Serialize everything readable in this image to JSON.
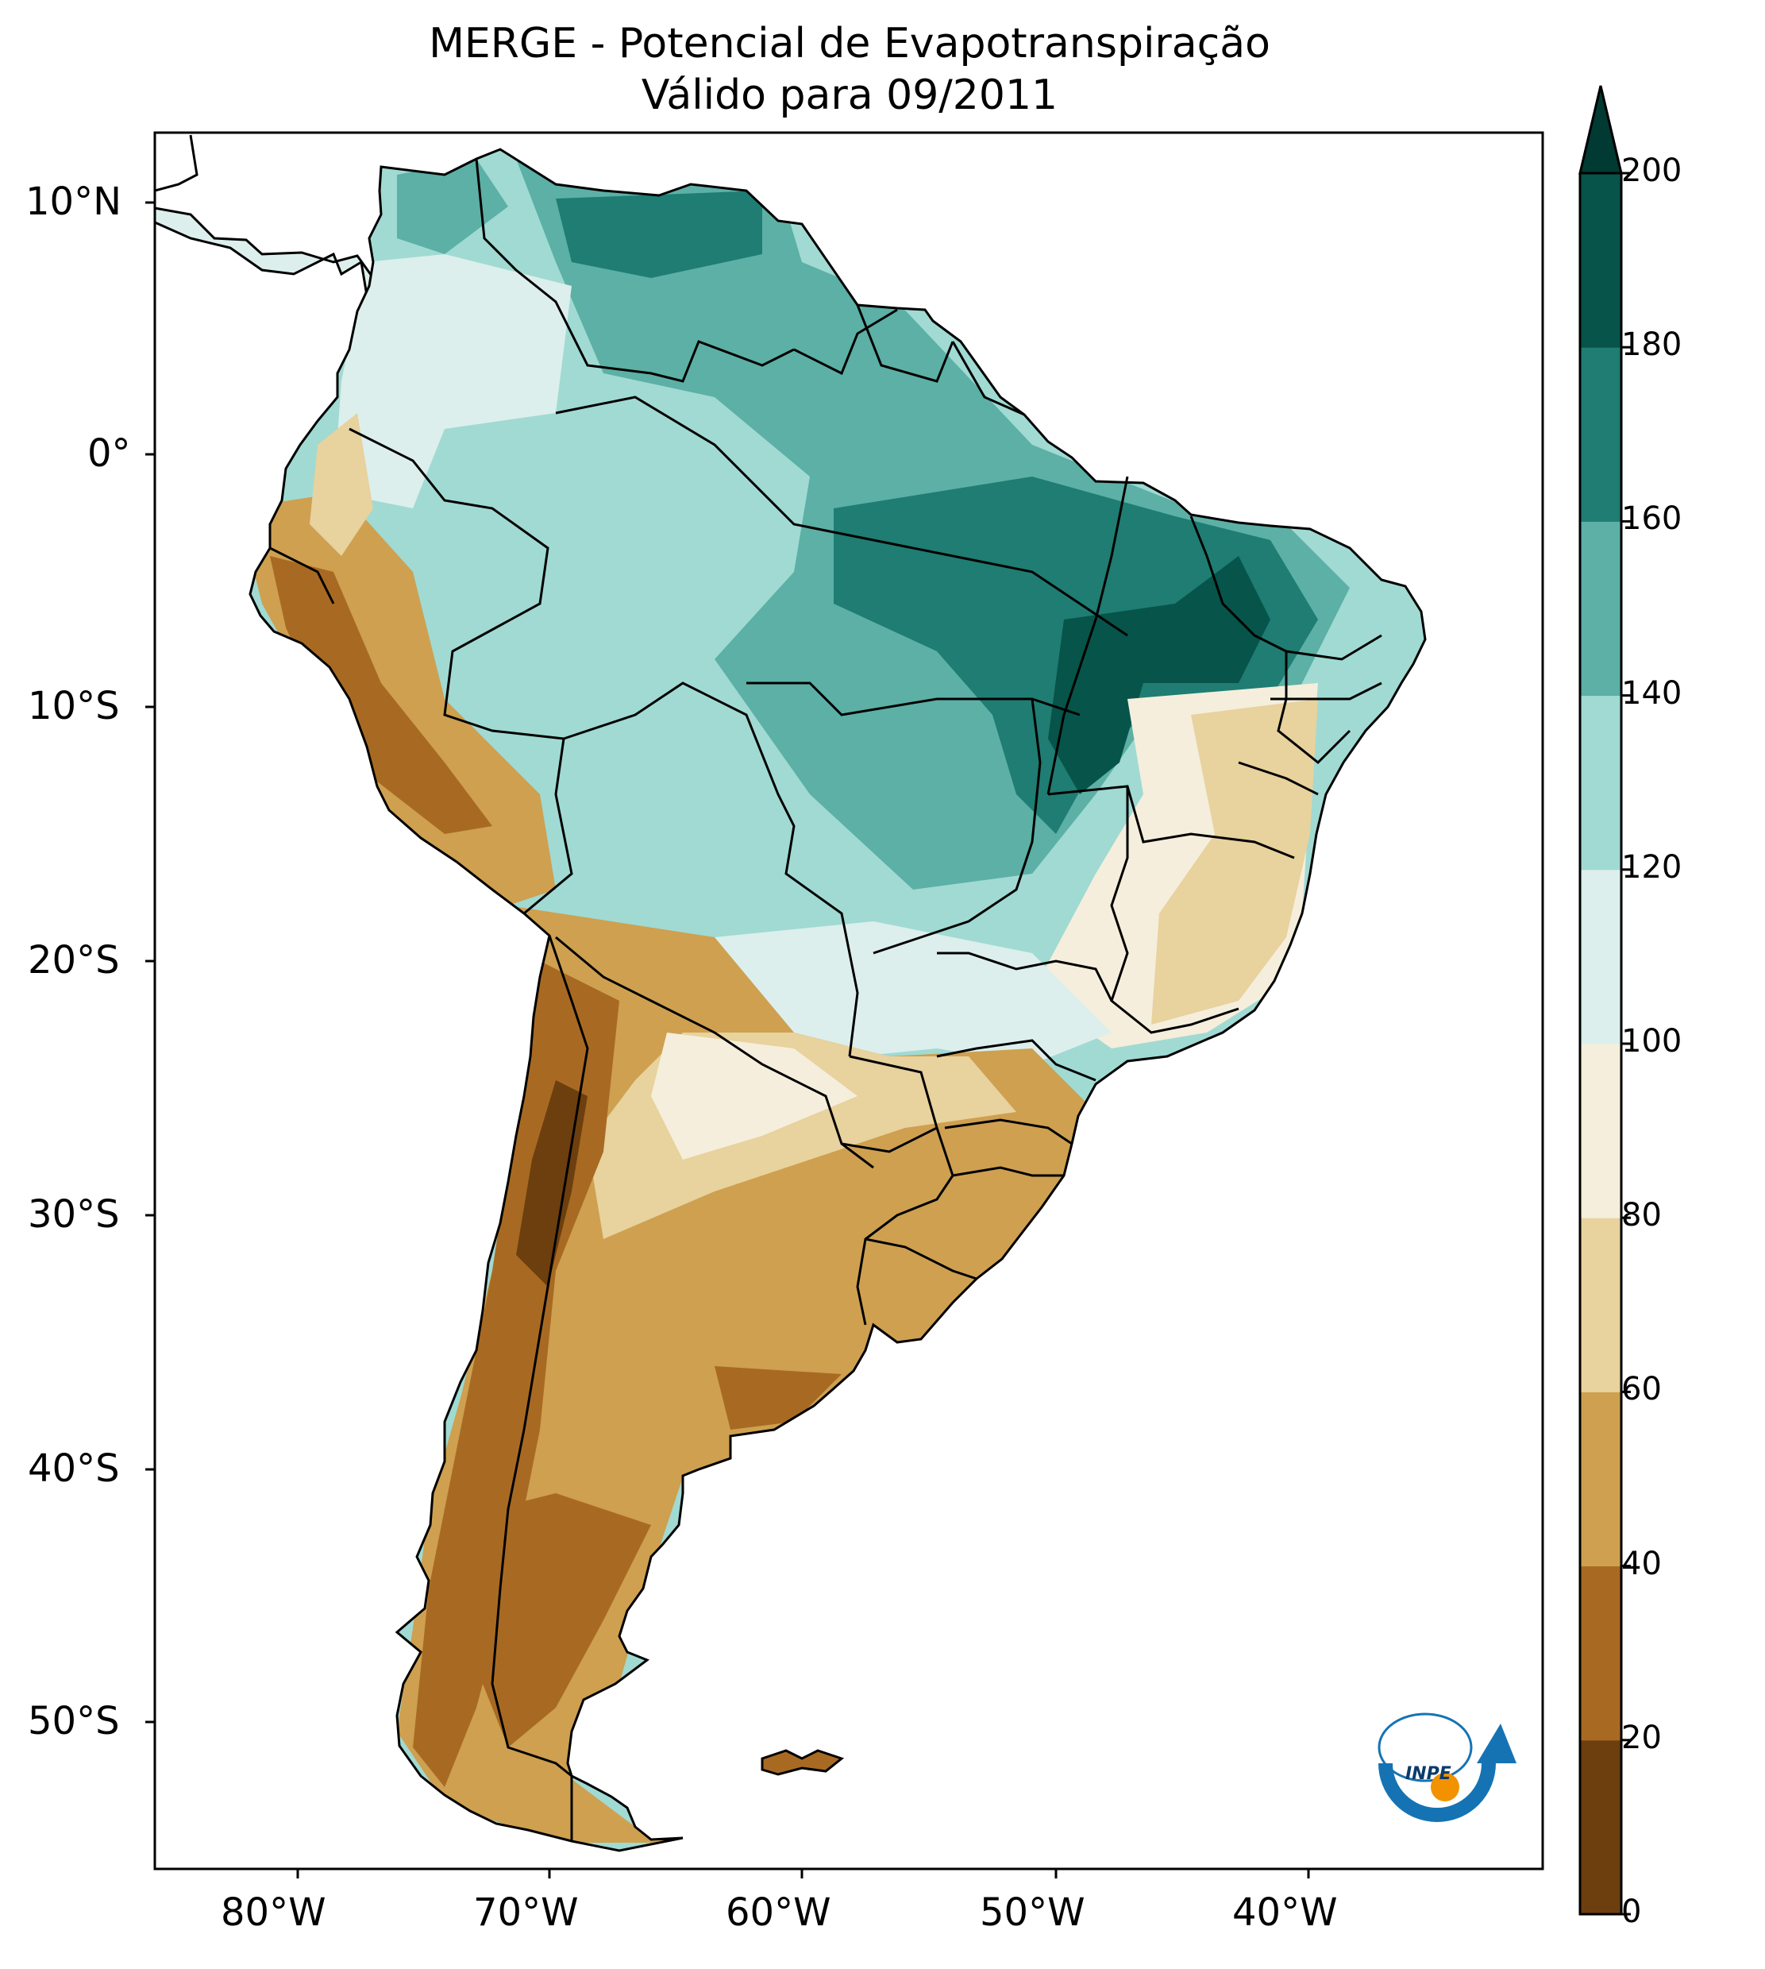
{
  "title": {
    "line1": "MERGE - Potencial de Evapotranspiração",
    "line2": "Válido para 09/2011"
  },
  "axes": {
    "lat_ticks": [
      "10°N",
      "0°",
      "10°S",
      "20°S",
      "30°S",
      "40°S",
      "50°S"
    ],
    "lon_ticks": [
      "80°W",
      "70°W",
      "60°W",
      "50°W",
      "40°W"
    ]
  },
  "colorbar": {
    "extend": "max",
    "ticks": [
      "0",
      "20",
      "40",
      "60",
      "80",
      "100",
      "120",
      "140",
      "160",
      "180",
      "200"
    ],
    "colors": [
      "#6d3f0f",
      "#a86a22",
      "#cea050",
      "#e8d29d",
      "#f5eedc",
      "#dcefec",
      "#a0dad3",
      "#5cb0a6",
      "#1f7d73",
      "#07544a",
      "#013a32"
    ]
  },
  "logo": {
    "text": "INPE",
    "colors": {
      "blue": "#1573b4",
      "orange": "#f29200"
    }
  }
}
